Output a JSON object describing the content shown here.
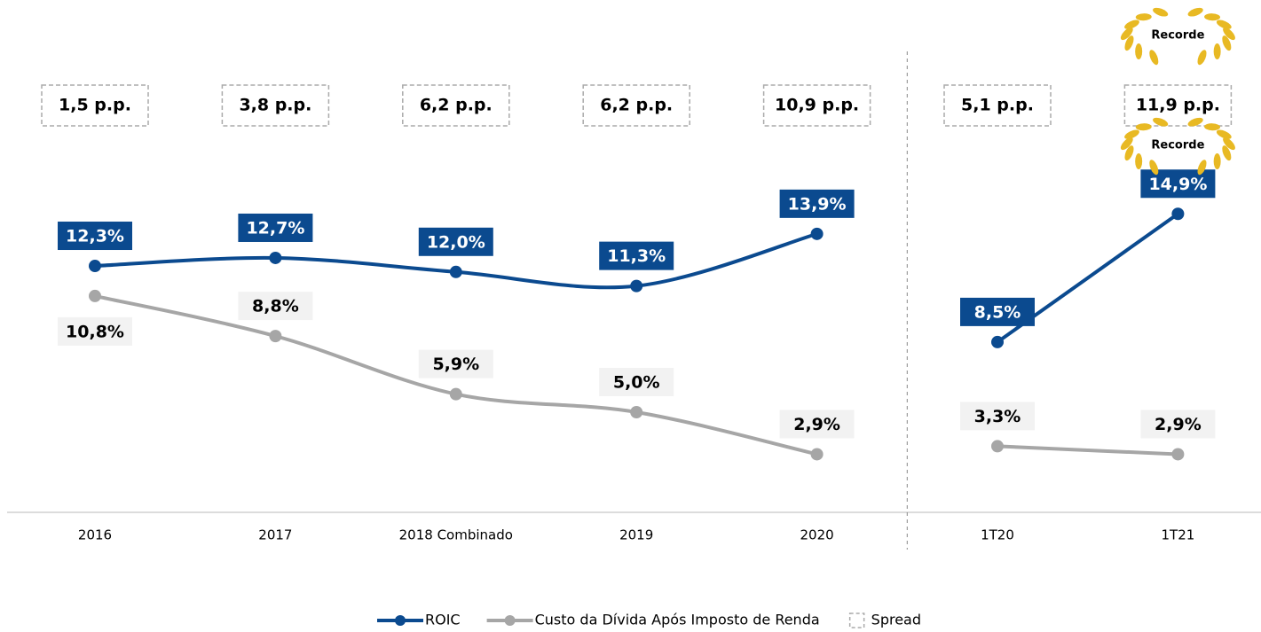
{
  "chart_data": {
    "type": "line",
    "categories": [
      "2016",
      "2017",
      "2018 Combinado",
      "2019",
      "2020",
      "1T20",
      "1T21"
    ],
    "series": [
      {
        "name": "ROIC",
        "color": "#0b4a8f",
        "values": [
          12.3,
          12.7,
          12.0,
          11.3,
          13.9,
          8.5,
          14.9
        ],
        "value_labels": [
          "12,3%",
          "12,7%",
          "12,0%",
          "11,3%",
          "13,9%",
          "8,5%",
          "14,9%"
        ]
      },
      {
        "name": "Custo da Dívida Após Imposto de Renda",
        "color": "#a6a6a6",
        "values": [
          10.8,
          8.8,
          5.9,
          5.0,
          2.9,
          3.3,
          2.9
        ],
        "value_labels": [
          "10,8%",
          "8,8%",
          "5,9%",
          "5,0%",
          "2,9%",
          "3,3%",
          "2,9%"
        ]
      },
      {
        "name": "Spread",
        "color": "#a6a6a6",
        "values": [
          1.5,
          3.8,
          6.2,
          6.2,
          10.9,
          5.1,
          11.9
        ],
        "value_labels": [
          "1,5 p.p.",
          "3,8 p.p.",
          "6,2 p.p.",
          "6,2 p.p.",
          "10,9 p.p.",
          "5,1 p.p.",
          "11,9 p.p."
        ]
      }
    ],
    "annotations": [
      "Recorde",
      "Recorde"
    ],
    "ylim": [
      0,
      25
    ],
    "divider_after": 4
  }
}
